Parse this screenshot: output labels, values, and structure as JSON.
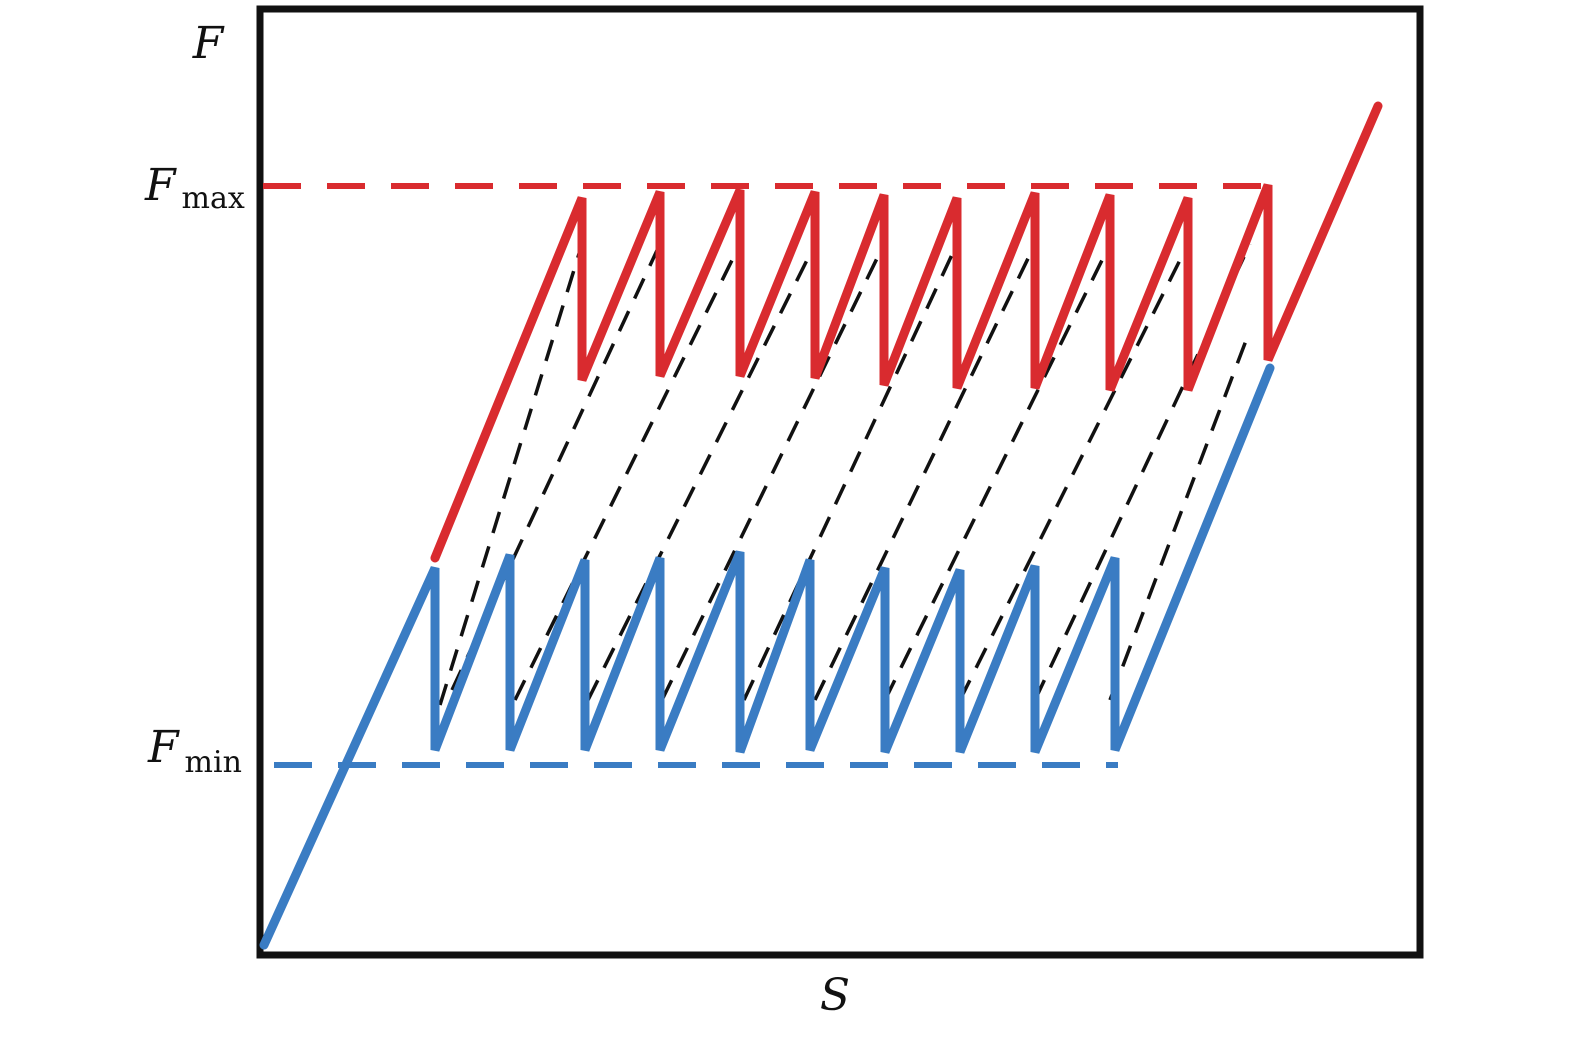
{
  "axes": {
    "y_label": "F",
    "x_label": "S"
  },
  "levels": {
    "fmax": {
      "main": "F",
      "sub": "max"
    },
    "fmin": {
      "main": "F",
      "sub": "min"
    }
  },
  "colors": {
    "upper_curve": "#d92b2f",
    "lower_curve": "#3a7cc3",
    "dashed_links": "#111111",
    "frame": "#111111"
  }
}
